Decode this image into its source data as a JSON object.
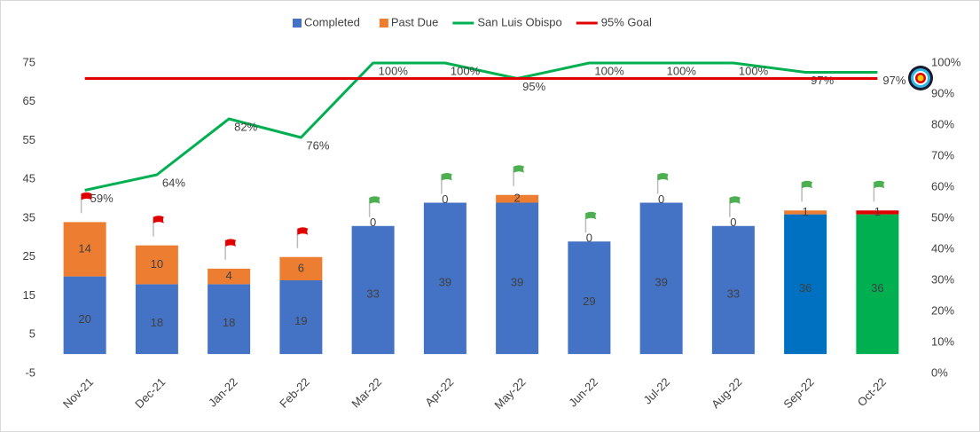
{
  "chart_data": {
    "type": "bar-line",
    "categories": [
      "Nov-21",
      "Dec-21",
      "Jan-22",
      "Feb-22",
      "Mar-22",
      "Apr-22",
      "May-22",
      "Jun-22",
      "Jul-22",
      "Aug-22",
      "Sep-22",
      "Oct-22"
    ],
    "series": [
      {
        "name": "Completed",
        "type": "bar",
        "color": "#4472c4",
        "colors": [
          "#4472c4",
          "#4472c4",
          "#4472c4",
          "#4472c4",
          "#4472c4",
          "#4472c4",
          "#4472c4",
          "#4472c4",
          "#4472c4",
          "#4472c4",
          "#0070c0",
          "#00b050"
        ],
        "values": [
          20,
          18,
          18,
          19,
          33,
          39,
          39,
          29,
          39,
          33,
          36,
          36
        ]
      },
      {
        "name": "Past Due",
        "type": "bar",
        "color": "#ed7d31",
        "colors": [
          "#ed7d31",
          "#ed7d31",
          "#ed7d31",
          "#ed7d31",
          "#ed7d31",
          "#ed7d31",
          "#ed7d31",
          "#ed7d31",
          "#ed7d31",
          "#ed7d31",
          "#ed7d31",
          "#e00000"
        ],
        "values": [
          14,
          10,
          4,
          6,
          0,
          0,
          2,
          0,
          0,
          0,
          1,
          1
        ]
      },
      {
        "name": "San Luis Obispo",
        "type": "line",
        "axis": "y2",
        "color": "#00b050",
        "values": [
          59,
          64,
          82,
          76,
          100,
          100,
          95,
          100,
          100,
          100,
          97,
          97
        ],
        "value_labels": [
          "59%",
          "64%",
          "82%",
          "76%",
          "100%",
          "100%",
          "95%",
          "100%",
          "100%",
          "100%",
          "97%",
          "97%"
        ]
      },
      {
        "name": "95% Goal",
        "type": "line",
        "axis": "y2",
        "color": "#e00000",
        "values": [
          95,
          95,
          95,
          95,
          95,
          95,
          95,
          95,
          95,
          95,
          95,
          95
        ]
      }
    ],
    "ylim": [
      -5,
      75
    ],
    "yticks": [
      -5,
      5,
      15,
      25,
      35,
      45,
      55,
      65,
      75
    ],
    "y2lim": [
      0,
      100
    ],
    "y2ticks": [
      {
        "value": 0,
        "label": "0%"
      },
      {
        "value": 10,
        "label": "10%"
      },
      {
        "value": 20,
        "label": "20%"
      },
      {
        "value": 30,
        "label": "30%"
      },
      {
        "value": 40,
        "label": "40%"
      },
      {
        "value": 50,
        "label": "50%"
      },
      {
        "value": 60,
        "label": "60%"
      },
      {
        "value": 70,
        "label": "70%"
      },
      {
        "value": 80,
        "label": "80%"
      },
      {
        "value": 90,
        "label": "90%"
      },
      {
        "value": 100,
        "label": "100%"
      }
    ],
    "legend": "top",
    "grid": false
  }
}
